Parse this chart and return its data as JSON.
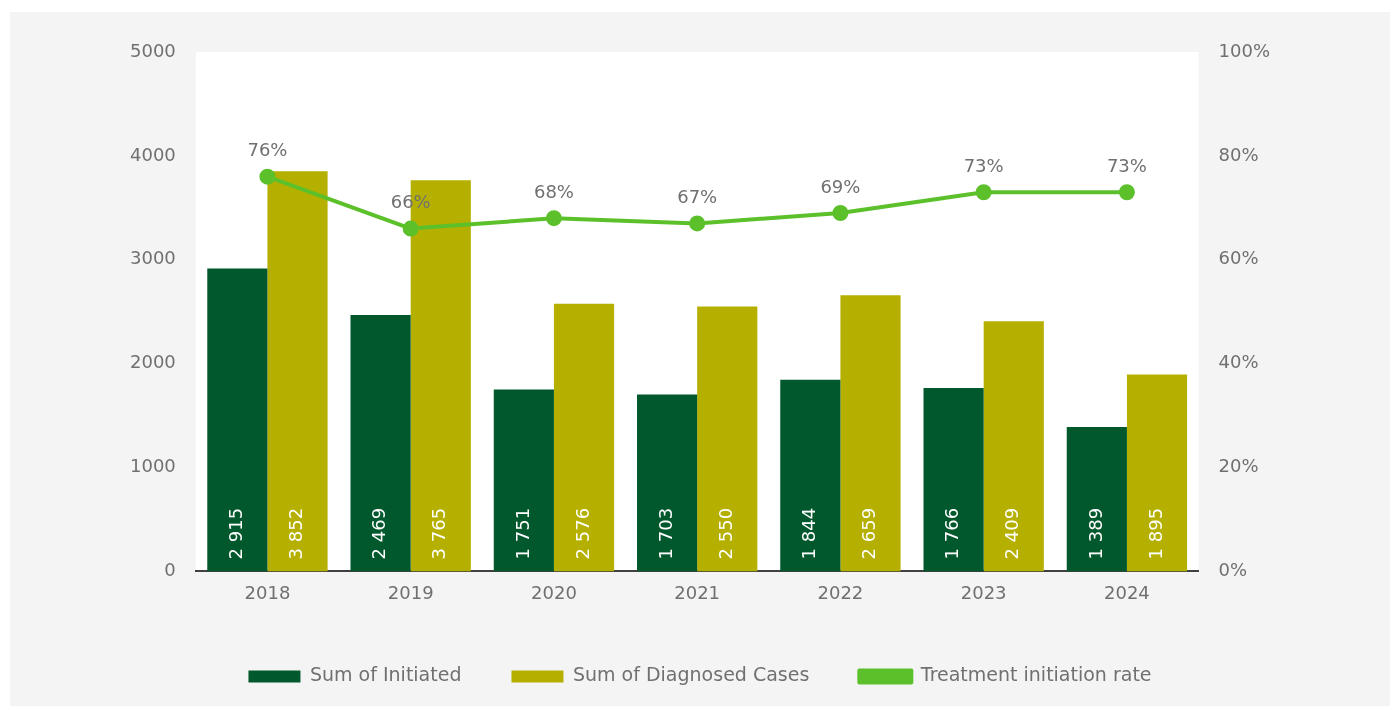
{
  "chart_data": {
    "type": "bar",
    "categories": [
      "2018",
      "2019",
      "2020",
      "2021",
      "2022",
      "2023",
      "2024"
    ],
    "series": [
      {
        "name": "Sum of Initiated",
        "color": "#00582c",
        "values": [
          2915,
          2469,
          1751,
          1703,
          1844,
          1766,
          1389
        ],
        "value_labels": [
          "2 915",
          "2 469",
          "1 751",
          "1 703",
          "1 844",
          "1 766",
          "1 389"
        ]
      },
      {
        "name": "Sum of Diagnosed Cases",
        "color": "#b5b000",
        "values": [
          3852,
          3765,
          2576,
          2550,
          2659,
          2409,
          1895
        ],
        "value_labels": [
          "3 852",
          "3 765",
          "2 576",
          "2 550",
          "2 659",
          "2 409",
          "1 895"
        ]
      },
      {
        "name": "Treatment initiation rate",
        "type": "line",
        "axis": "y2",
        "color": "#5cc02a",
        "values": [
          76,
          66,
          68,
          67,
          69,
          73,
          73
        ],
        "value_labels": [
          "76%",
          "66%",
          "68%",
          "67%",
          "69%",
          "73%",
          "73%"
        ]
      }
    ],
    "ylim": [
      0,
      5000
    ],
    "yticks": [
      0,
      1000,
      2000,
      3000,
      4000,
      5000
    ],
    "y2lim": [
      0,
      100
    ],
    "y2ticks": [
      {
        "value": 0,
        "label": "0%"
      },
      {
        "value": 20,
        "label": "20%"
      },
      {
        "value": 40,
        "label": "40%"
      },
      {
        "value": 60,
        "label": "60%"
      },
      {
        "value": 80,
        "label": "80%"
      },
      {
        "value": 100,
        "label": "100%"
      }
    ],
    "grid": false,
    "legend": "bottom",
    "marker": "circle",
    "line_style": "solid"
  }
}
